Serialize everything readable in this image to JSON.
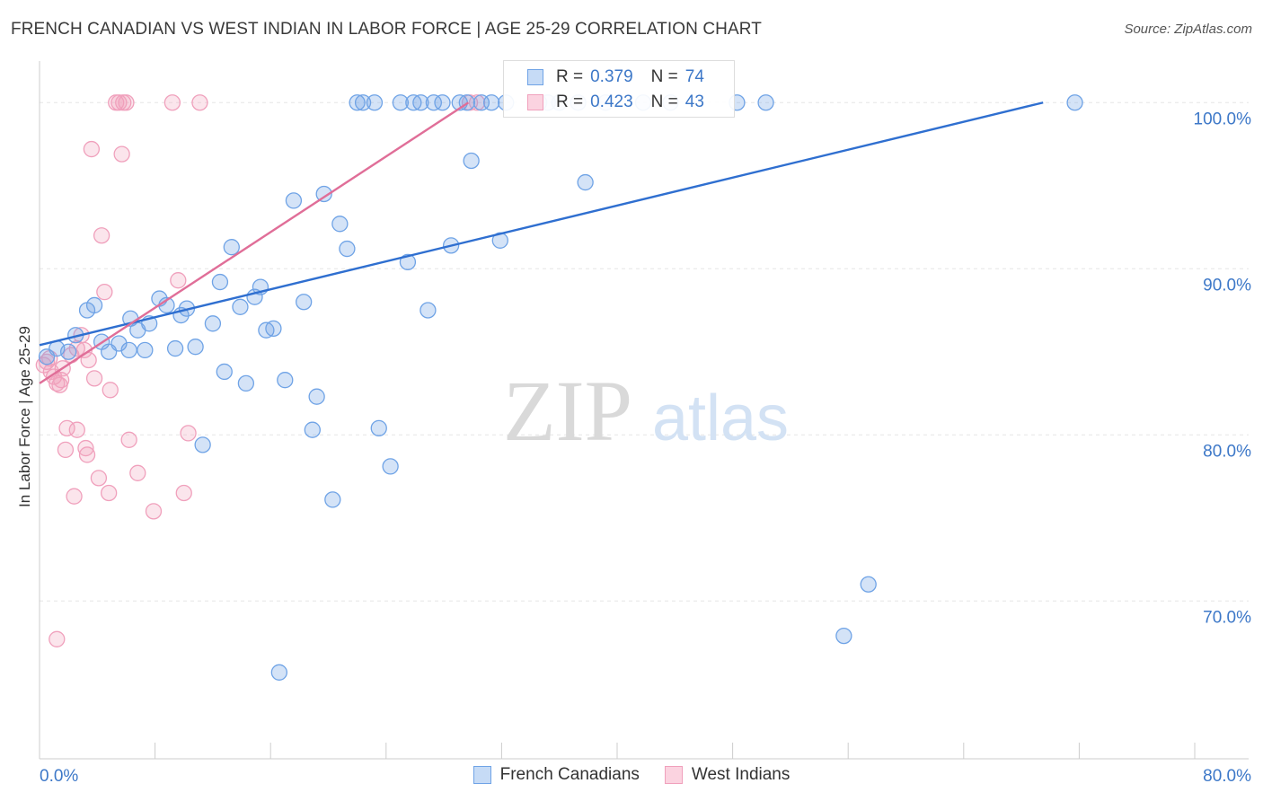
{
  "title": "FRENCH CANADIAN VS WEST INDIAN IN LABOR FORCE | AGE 25-29 CORRELATION CHART",
  "source": "Source: ZipAtlas.com",
  "watermark": {
    "zip": "ZIP",
    "atlas": "atlas"
  },
  "legend": {
    "series1": {
      "r_label": "R =",
      "r": "0.379",
      "n_label": "N =",
      "n": "74"
    },
    "series2": {
      "r_label": "R =",
      "r": "0.423",
      "n_label": "N =",
      "n": "43"
    }
  },
  "chart_data": {
    "type": "scatter",
    "title": "FRENCH CANADIAN VS WEST INDIAN IN LABOR FORCE | AGE 25-29 CORRELATION CHART",
    "xlabel": "",
    "ylabel": "In Labor Force | Age 25-29",
    "xlim": [
      0,
      80
    ],
    "ylim": [
      60.5,
      102.5
    ],
    "x_tick_labels": [
      "0.0%",
      "80.0%"
    ],
    "y_ticks": [
      {
        "value": 100,
        "label": "100.0%"
      },
      {
        "value": 90,
        "label": "90.0%"
      },
      {
        "value": 80,
        "label": "80.0%"
      },
      {
        "value": 70,
        "label": "70.0%"
      }
    ],
    "grid": true,
    "legend_position": "top-center",
    "colors": {
      "blue": "#6fa3e6",
      "blue_line": "#2f6fd0",
      "pink": "#f0a0bc",
      "pink_line": "#e06e98",
      "axis_text": "#3d78c8"
    },
    "series": [
      {
        "name": "French Canadians",
        "color": "#6fa3e6",
        "trend": {
          "x": [
            0,
            69.5
          ],
          "y": [
            85.4,
            100.0
          ]
        },
        "points": [
          [
            0.5,
            84.7
          ],
          [
            1.2,
            85.2
          ],
          [
            2.0,
            85.0
          ],
          [
            2.5,
            86.0
          ],
          [
            3.3,
            87.5
          ],
          [
            3.8,
            87.8
          ],
          [
            4.3,
            85.6
          ],
          [
            4.8,
            85.0
          ],
          [
            5.5,
            85.5
          ],
          [
            6.2,
            85.1
          ],
          [
            6.3,
            87.0
          ],
          [
            6.8,
            86.3
          ],
          [
            7.3,
            85.1
          ],
          [
            7.6,
            86.7
          ],
          [
            8.3,
            88.2
          ],
          [
            8.8,
            87.8
          ],
          [
            9.4,
            85.2
          ],
          [
            9.8,
            87.2
          ],
          [
            10.2,
            87.6
          ],
          [
            10.8,
            85.3
          ],
          [
            11.3,
            79.4
          ],
          [
            12.0,
            86.7
          ],
          [
            12.5,
            89.2
          ],
          [
            12.8,
            83.8
          ],
          [
            13.3,
            91.3
          ],
          [
            13.9,
            87.7
          ],
          [
            14.3,
            83.1
          ],
          [
            14.9,
            88.3
          ],
          [
            15.3,
            88.9
          ],
          [
            15.7,
            86.3
          ],
          [
            16.2,
            86.4
          ],
          [
            16.6,
            65.7
          ],
          [
            17.0,
            83.3
          ],
          [
            17.6,
            94.1
          ],
          [
            18.3,
            88.0
          ],
          [
            18.9,
            80.3
          ],
          [
            19.2,
            82.3
          ],
          [
            19.7,
            94.5
          ],
          [
            20.3,
            76.1
          ],
          [
            20.8,
            92.7
          ],
          [
            21.3,
            91.2
          ],
          [
            22.0,
            100
          ],
          [
            22.4,
            100
          ],
          [
            23.2,
            100
          ],
          [
            23.5,
            80.4
          ],
          [
            24.3,
            78.1
          ],
          [
            25.0,
            100
          ],
          [
            25.5,
            90.4
          ],
          [
            25.9,
            100
          ],
          [
            26.4,
            100
          ],
          [
            26.9,
            87.5
          ],
          [
            27.3,
            100
          ],
          [
            27.9,
            100
          ],
          [
            28.5,
            91.4
          ],
          [
            29.1,
            100
          ],
          [
            29.6,
            100
          ],
          [
            29.9,
            96.5
          ],
          [
            30.6,
            100
          ],
          [
            31.3,
            100
          ],
          [
            31.9,
            91.7
          ],
          [
            32.3,
            100
          ],
          [
            34.6,
            100
          ],
          [
            35.2,
            100
          ],
          [
            36.0,
            100
          ],
          [
            37.3,
            100
          ],
          [
            37.8,
            95.2
          ],
          [
            39.2,
            100
          ],
          [
            41.8,
            100
          ],
          [
            43.7,
            100
          ],
          [
            48.3,
            100
          ],
          [
            50.3,
            100
          ],
          [
            55.7,
            67.9
          ],
          [
            57.4,
            71.0
          ],
          [
            71.7,
            100
          ]
        ]
      },
      {
        "name": "West Indians",
        "color": "#f0a0bc",
        "trend": {
          "x": [
            0,
            29.7
          ],
          "y": [
            83.1,
            100.0
          ]
        },
        "points": [
          [
            0.3,
            84.2
          ],
          [
            0.5,
            84.4
          ],
          [
            0.8,
            83.8
          ],
          [
            1.0,
            83.5
          ],
          [
            1.2,
            83.1
          ],
          [
            1.4,
            83.0
          ],
          [
            1.6,
            84.0
          ],
          [
            1.8,
            79.1
          ],
          [
            1.9,
            80.4
          ],
          [
            2.2,
            84.8
          ],
          [
            2.4,
            76.3
          ],
          [
            2.6,
            80.3
          ],
          [
            2.9,
            86.0
          ],
          [
            3.1,
            85.1
          ],
          [
            3.2,
            79.2
          ],
          [
            3.3,
            78.8
          ],
          [
            3.6,
            97.2
          ],
          [
            3.8,
            83.4
          ],
          [
            4.1,
            77.4
          ],
          [
            4.3,
            92.0
          ],
          [
            4.5,
            88.6
          ],
          [
            4.8,
            76.5
          ],
          [
            4.9,
            82.7
          ],
          [
            5.3,
            100
          ],
          [
            5.5,
            100
          ],
          [
            5.7,
            96.9
          ],
          [
            5.8,
            100
          ],
          [
            6.0,
            100
          ],
          [
            6.2,
            79.7
          ],
          [
            6.8,
            77.7
          ],
          [
            7.9,
            75.4
          ],
          [
            9.2,
            100
          ],
          [
            9.6,
            89.3
          ],
          [
            10.0,
            76.5
          ],
          [
            10.3,
            80.1
          ],
          [
            11.1,
            100
          ],
          [
            1.2,
            67.7
          ],
          [
            0.7,
            84.6
          ],
          [
            29.8,
            100
          ],
          [
            30.3,
            100
          ],
          [
            2.6,
            85.2
          ],
          [
            1.5,
            83.3
          ],
          [
            3.4,
            84.5
          ]
        ]
      }
    ]
  }
}
